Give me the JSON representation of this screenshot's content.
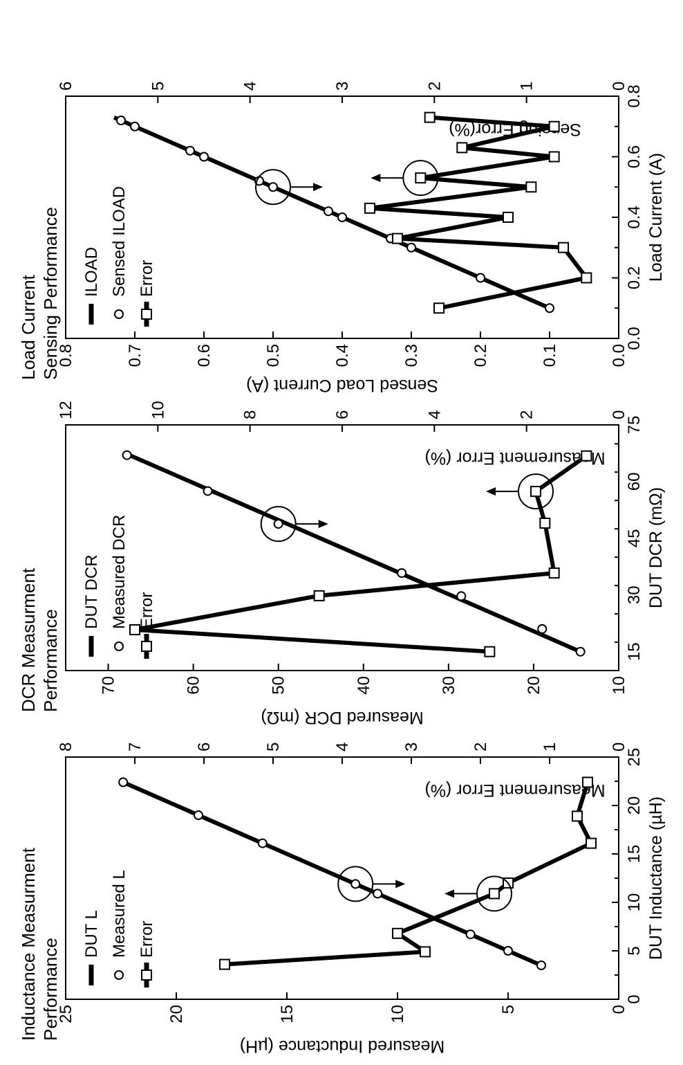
{
  "chart_data": [
    {
      "type": "line",
      "title": "Inductance Measurment Performance",
      "title_lines": [
        "Inductance Measurment",
        "Performance"
      ],
      "xlabel": "DUT Inductance (µH)",
      "ylabel": "Measured Inductance (µH)",
      "y2label": "Measurement Error (%)",
      "xlim": [
        0,
        25
      ],
      "ylim": [
        0,
        25
      ],
      "y2lim": [
        0,
        8
      ],
      "xticks": [
        0,
        5,
        10,
        15,
        20,
        25
      ],
      "yticks": [
        0,
        5,
        10,
        15,
        20,
        25
      ],
      "y2ticks": [
        0,
        1,
        2,
        3,
        4,
        5,
        6,
        7,
        8
      ],
      "legend": [
        "DUT L",
        "Measured L",
        "Error"
      ],
      "legend_position": "top-left",
      "series": [
        {
          "name": "DUT L",
          "axis": "y",
          "style": "line",
          "x": [
            3.5,
            22.5
          ],
          "y": [
            3.5,
            22.5
          ]
        },
        {
          "name": "Measured L",
          "axis": "y",
          "style": "circle",
          "x": [
            3.5,
            5.0,
            6.7,
            10.9,
            11.9,
            16.1,
            19.0,
            22.4
          ],
          "y": [
            3.5,
            5.0,
            6.7,
            10.9,
            11.9,
            16.1,
            19.0,
            22.4
          ]
        },
        {
          "name": "Error",
          "axis": "y2",
          "style": "square-line",
          "x": [
            3.6,
            4.9,
            6.8,
            10.9,
            12.0,
            16.1,
            18.9,
            22.4
          ],
          "y": [
            5.7,
            2.8,
            3.2,
            1.8,
            1.6,
            0.4,
            0.6,
            0.45
          ]
        }
      ]
    },
    {
      "type": "line",
      "title": "DCR Measurment Performance",
      "title_lines": [
        "DCR Measurment",
        "Performance"
      ],
      "xlabel": "DUT DCR (mΩ)",
      "ylabel": "Measured DCR (mΩ)",
      "y2label": "Measurement Error (%)",
      "xlim": [
        10,
        75
      ],
      "ylim": [
        10,
        75
      ],
      "y2lim": [
        0,
        12
      ],
      "xticks": [
        15,
        30,
        45,
        60,
        75
      ],
      "yticks": [
        10,
        20,
        30,
        40,
        50,
        60,
        70
      ],
      "y2ticks": [
        0,
        2,
        4,
        6,
        8,
        10,
        12
      ],
      "legend": [
        "DUT DCR",
        "Measured DCR",
        "Error"
      ],
      "legend_position": "top-left",
      "series": [
        {
          "name": "DUT DCR",
          "axis": "y",
          "style": "line",
          "x": [
            15,
            67
          ],
          "y": [
            14.5,
            67.5
          ]
        },
        {
          "name": "Measured DCR",
          "axis": "y",
          "style": "circle",
          "x": [
            15,
            21,
            29.7,
            35.8,
            48.8,
            57.5,
            67
          ],
          "y": [
            14.5,
            19,
            28.5,
            35.5,
            50,
            58.3,
            67.8
          ]
        },
        {
          "name": "Error",
          "axis": "y2",
          "style": "square-line",
          "x": [
            15,
            20.8,
            29.8,
            35.8,
            49,
            57.4,
            66.8
          ],
          "y": [
            2.8,
            10.5,
            6.5,
            1.4,
            1.6,
            1.8,
            0.7
          ]
        }
      ]
    },
    {
      "type": "line",
      "title": "Load Current Sensing Performance",
      "title_lines": [
        "Load Current",
        "Sensing Performance"
      ],
      "xlabel": "Load Current (A)",
      "ylabel": "Sensed Load Current (A)",
      "y2label": "Sensing Error(%)",
      "xlim": [
        0,
        0.8
      ],
      "ylim": [
        0,
        0.8
      ],
      "y2lim": [
        0,
        6
      ],
      "xticks": [
        0.0,
        0.2,
        0.4,
        0.6,
        0.8
      ],
      "yticks": [
        0.0,
        0.1,
        0.2,
        0.3,
        0.4,
        0.5,
        0.6,
        0.7,
        0.8
      ],
      "y2ticks": [
        0,
        1,
        2,
        3,
        4,
        5,
        6
      ],
      "legend": [
        "ILOAD",
        "Sensed ILOAD",
        "Error"
      ],
      "legend_position": "top-left",
      "series": [
        {
          "name": "ILOAD",
          "axis": "y",
          "style": "line",
          "x": [
            0.1,
            0.73
          ],
          "y": [
            0.1,
            0.73
          ]
        },
        {
          "name": "Sensed ILOAD",
          "axis": "y",
          "style": "circle",
          "x": [
            0.1,
            0.2,
            0.3,
            0.33,
            0.4,
            0.42,
            0.5,
            0.52,
            0.6,
            0.62,
            0.7,
            0.72
          ],
          "y": [
            0.1,
            0.2,
            0.3,
            0.33,
            0.4,
            0.42,
            0.5,
            0.52,
            0.6,
            0.62,
            0.7,
            0.72
          ]
        },
        {
          "name": "Error",
          "axis": "y2",
          "style": "square-line",
          "x": [
            0.1,
            0.2,
            0.3,
            0.33,
            0.4,
            0.43,
            0.5,
            0.53,
            0.6,
            0.63,
            0.7,
            0.73
          ],
          "y": [
            1.95,
            0.35,
            0.6,
            2.4,
            1.2,
            2.7,
            0.95,
            2.15,
            0.7,
            1.7,
            0.7,
            2.05
          ]
        }
      ]
    }
  ]
}
